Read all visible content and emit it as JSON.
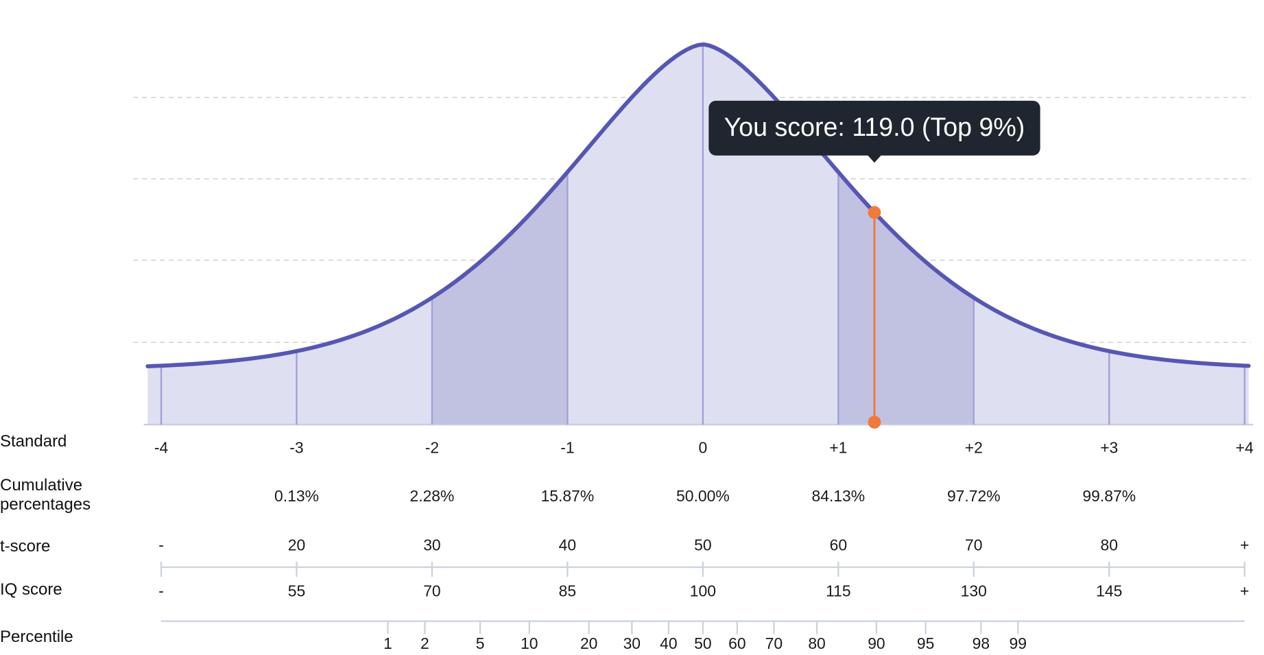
{
  "chart_data": {
    "type": "bell",
    "standard_label": "Standard",
    "standard_ticks": [
      -4,
      -3,
      -2,
      -1,
      0,
      {
        "value": 1,
        "label": "+1"
      },
      {
        "value": 2,
        "label": "+2"
      },
      {
        "value": 3,
        "label": "+3"
      },
      {
        "value": 4,
        "label": "+4"
      }
    ],
    "rows": [
      {
        "label": "Cumulative percentages",
        "values": [
          null,
          "0.13%",
          "2.28%",
          "15.87%",
          "50.00%",
          "84.13%",
          "97.72%",
          "99.87%",
          null
        ]
      },
      {
        "label": "t-score",
        "values": [
          "-",
          20,
          30,
          40,
          50,
          60,
          70,
          80,
          "+"
        ]
      },
      {
        "label": "IQ score",
        "values": [
          "-",
          55,
          70,
          85,
          100,
          115,
          130,
          145,
          "+"
        ]
      }
    ],
    "percentile_label": "Percentile",
    "percentiles": [
      1,
      2,
      5,
      10,
      20,
      30,
      40,
      50,
      60,
      70,
      80,
      90,
      95,
      98,
      99
    ],
    "marker": {
      "value": 119,
      "label": "You score: 119.0 (Top 9%)"
    }
  }
}
